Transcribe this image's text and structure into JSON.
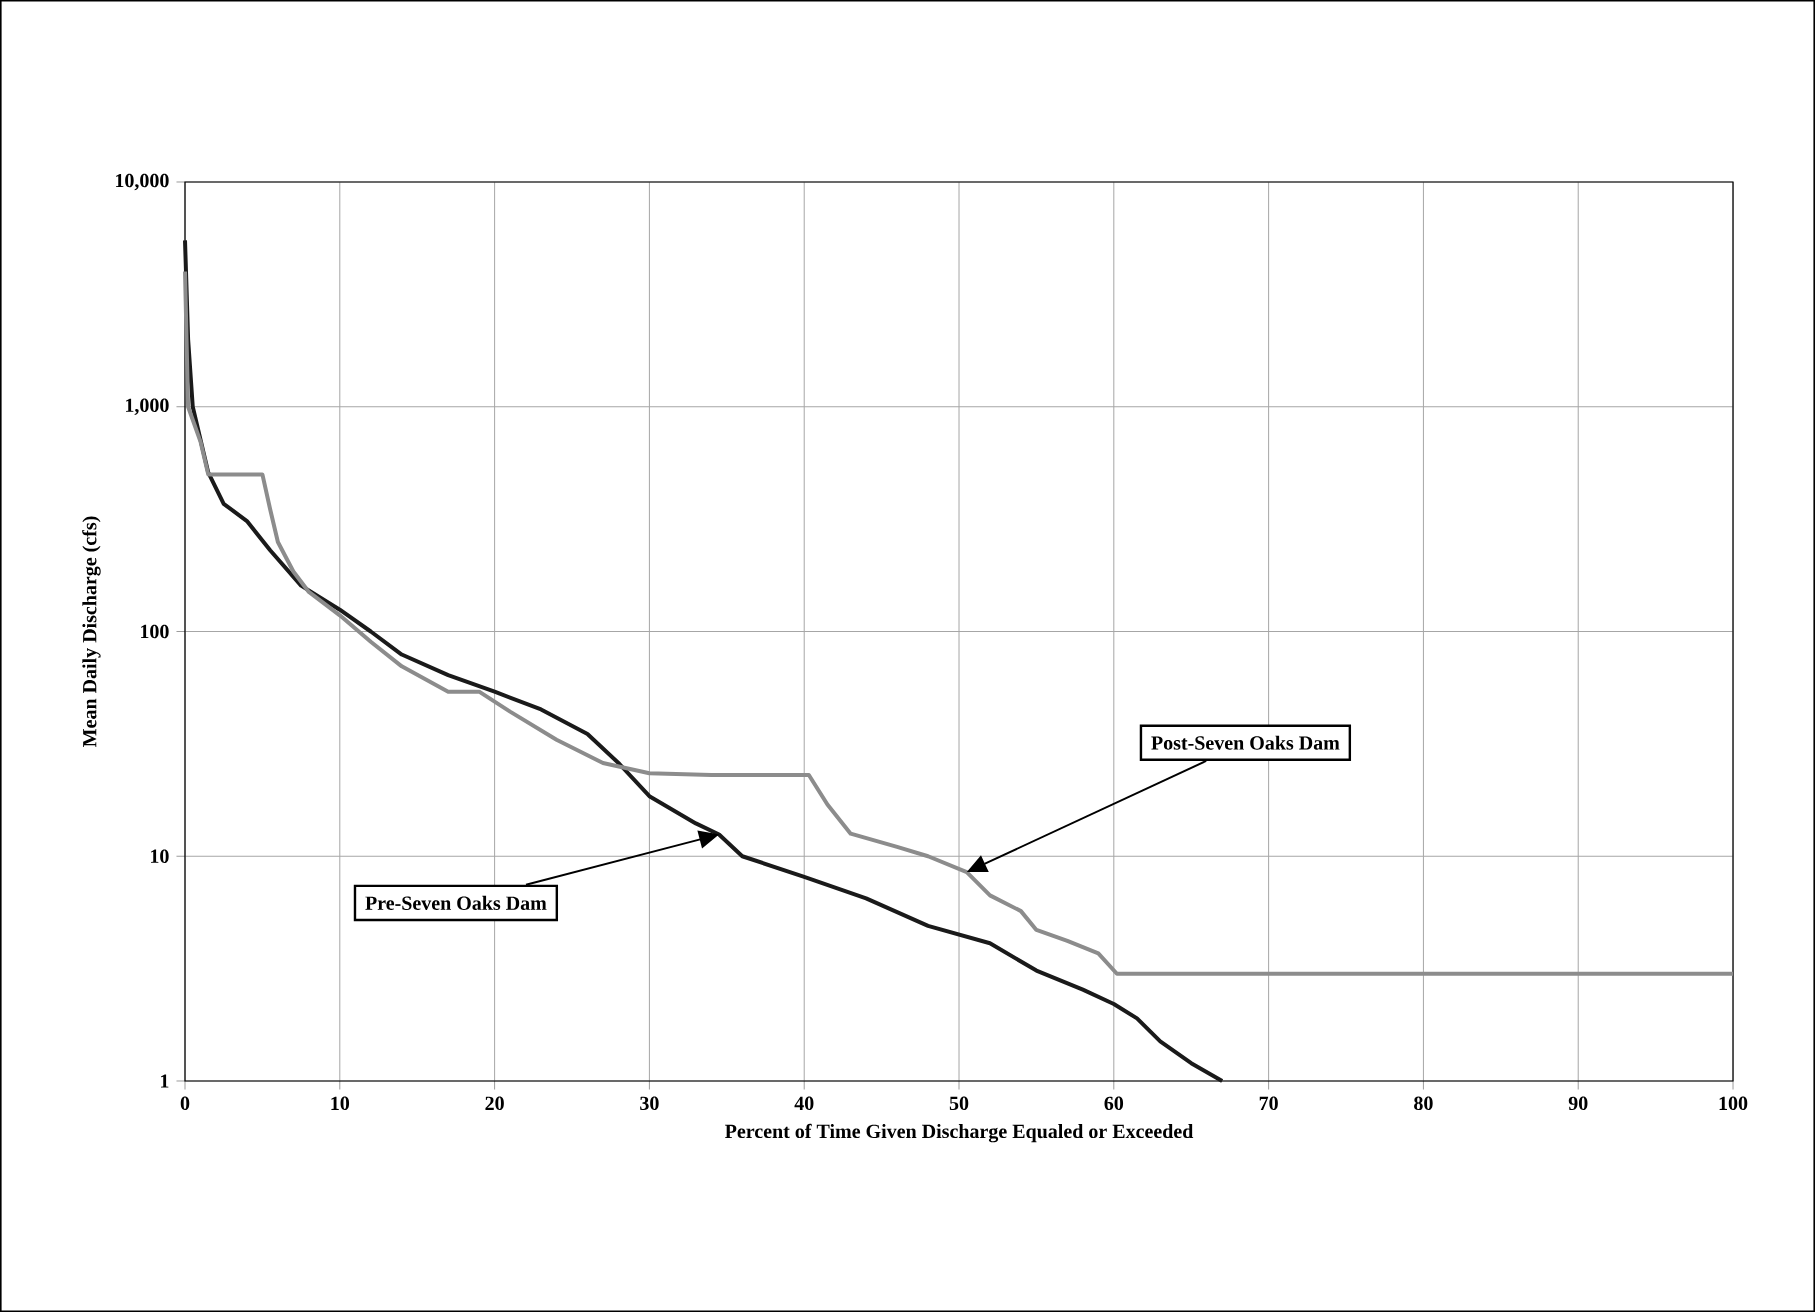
{
  "chart_data": {
    "type": "line",
    "annotations": [
      "Pre-Seven Oaks Dam",
      "Post-Seven Oaks Dam"
    ],
    "xlabel": "Percent of Time Given Discharge Equaled or Exceeded",
    "ylabel": "Mean Daily Discharge (cfs)",
    "log": "y",
    "grid": true,
    "line_style": "solid",
    "marker": "none",
    "xlim": [
      0,
      100
    ],
    "xticks": [
      0,
      10,
      20,
      30,
      40,
      50,
      60,
      70,
      80,
      90,
      100
    ],
    "ylim": [
      1,
      10000
    ],
    "yticks": [
      1,
      10,
      100,
      {
        "value": 1000,
        "label": "1,000"
      },
      {
        "value": 10000,
        "label": "10,000"
      }
    ],
    "series": [
      {
        "color": "#1a1a1a",
        "x": [
          0,
          0.2,
          0.5,
          1.5,
          2.5,
          4,
          5.5,
          7.5,
          10,
          12,
          14,
          17,
          20,
          23,
          26,
          28,
          30,
          33,
          34.5,
          36,
          40,
          44,
          48,
          52,
          55,
          58,
          60,
          61.5,
          63,
          65,
          67
        ],
        "values": [
          5500,
          2000,
          1000,
          510,
          370,
          310,
          230,
          160,
          125,
          100,
          79,
          64,
          54,
          45,
          35,
          26,
          18.5,
          14,
          12.5,
          10,
          8.1,
          6.5,
          4.9,
          4.1,
          3.1,
          2.55,
          2.2,
          1.9,
          1.5,
          1.2,
          1.0
        ]
      },
      {
        "color": "#8c8c8c",
        "x": [
          0,
          0.2,
          1,
          1.5,
          5,
          5.5,
          6,
          7,
          8,
          10,
          12,
          14,
          17,
          19,
          21,
          24,
          27,
          30,
          34,
          40.3,
          41.5,
          43,
          46,
          48,
          50.5,
          52,
          54,
          55,
          57,
          59,
          60.2,
          100
        ],
        "values": [
          4000,
          1000,
          700,
          500,
          500,
          350,
          250,
          185,
          150,
          118,
          90,
          70,
          54,
          54,
          44,
          33,
          26,
          23.4,
          23,
          23,
          17,
          12.6,
          11,
          10,
          8.5,
          6.7,
          5.7,
          4.7,
          4.2,
          3.7,
          3.0,
          3.0
        ]
      }
    ]
  }
}
